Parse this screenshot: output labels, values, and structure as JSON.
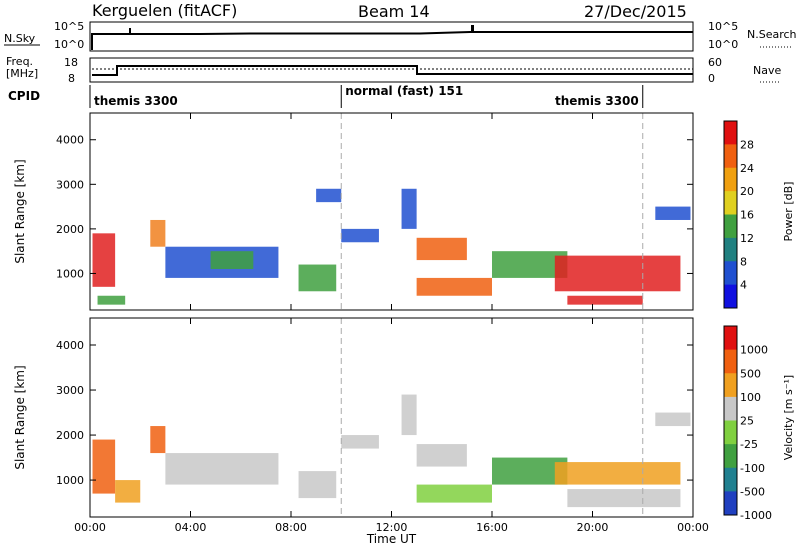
{
  "header": {
    "title": "Kerguelen (fitACF)",
    "beam": "Beam 14",
    "date": "27/Dec/2015"
  },
  "top_panels": {
    "nsky_label": "N.Sky",
    "nsky_ticks": [
      "10^5",
      "10^0"
    ],
    "nsearch_label": "N.Search",
    "nsearch_ticks": [
      "10^5",
      "10^0"
    ],
    "freq_label_1": "Freq.",
    "freq_label_2": "[MHz]",
    "freq_ticks": [
      "18",
      "8"
    ],
    "nave_label": "Nave",
    "nave_ticks": [
      "60",
      "0"
    ],
    "cpid_label": "CPID",
    "cpid_segments": [
      {
        "name": "themis 3300",
        "start_h": 0,
        "end_h": 10
      },
      {
        "name": "normal (fast) 151",
        "start_h": 10,
        "end_h": 22
      },
      {
        "name": "themis 3300",
        "start_h": 22,
        "end_h": 24
      }
    ]
  },
  "chart_data": [
    {
      "type": "heatmap",
      "name": "power-panel",
      "xlabel": "",
      "ylabel": "Slant Range [km]",
      "xlim": [
        0,
        24
      ],
      "ylim": [
        180,
        4600
      ],
      "yticks": [
        1000,
        2000,
        3000,
        4000
      ],
      "colorbar_label": "Power [dB]",
      "colorbar_ticks": [
        "4",
        "8",
        "12",
        "16",
        "20",
        "24",
        "28"
      ],
      "colorbar_colors": [
        "#1010e0",
        "#2050d0",
        "#208080",
        "#40a040",
        "#e0d020",
        "#f0a010",
        "#f06010",
        "#e01010"
      ],
      "markers_h": [
        10,
        22
      ],
      "regions": [
        {
          "t0": 0.1,
          "t1": 1.0,
          "r0": 700,
          "r1": 1900,
          "color": "#e02020"
        },
        {
          "t0": 0.3,
          "t1": 1.4,
          "r0": 300,
          "r1": 500,
          "color": "#40a040"
        },
        {
          "t0": 2.4,
          "t1": 3.0,
          "r0": 1600,
          "r1": 2200,
          "color": "#f08020"
        },
        {
          "t0": 3.0,
          "t1": 7.5,
          "r0": 900,
          "r1": 1600,
          "color": "#2050d0"
        },
        {
          "t0": 4.8,
          "t1": 6.5,
          "r0": 1100,
          "r1": 1500,
          "color": "#40a040"
        },
        {
          "t0": 8.3,
          "t1": 9.8,
          "r0": 600,
          "r1": 1200,
          "color": "#40a040"
        },
        {
          "t0": 9.0,
          "t1": 10.0,
          "r0": 2600,
          "r1": 2900,
          "color": "#2050d0"
        },
        {
          "t0": 10.0,
          "t1": 11.5,
          "r0": 1700,
          "r1": 2000,
          "color": "#2050d0"
        },
        {
          "t0": 12.4,
          "t1": 13.0,
          "r0": 2000,
          "r1": 2900,
          "color": "#2050d0"
        },
        {
          "t0": 13.0,
          "t1": 15.0,
          "r0": 1300,
          "r1": 1800,
          "color": "#f06010"
        },
        {
          "t0": 13.0,
          "t1": 16.0,
          "r0": 500,
          "r1": 900,
          "color": "#f06010"
        },
        {
          "t0": 16.0,
          "t1": 19.0,
          "r0": 900,
          "r1": 1500,
          "color": "#40a040"
        },
        {
          "t0": 18.5,
          "t1": 23.5,
          "r0": 600,
          "r1": 1400,
          "color": "#e02020"
        },
        {
          "t0": 19.0,
          "t1": 22.0,
          "r0": 300,
          "r1": 500,
          "color": "#e02020"
        },
        {
          "t0": 22.5,
          "t1": 23.9,
          "r0": 2200,
          "r1": 2500,
          "color": "#2050d0"
        }
      ]
    },
    {
      "type": "heatmap",
      "name": "velocity-panel",
      "xlabel": "Time UT",
      "ylabel": "Slant Range [km]",
      "xlim": [
        0,
        24
      ],
      "ylim": [
        180,
        4600
      ],
      "yticks": [
        1000,
        2000,
        3000,
        4000
      ],
      "xticks": [
        "00:00",
        "04:00",
        "08:00",
        "12:00",
        "16:00",
        "20:00",
        "00:00"
      ],
      "colorbar_label": "Velocity [m s⁻¹]",
      "colorbar_ticks": [
        "1000",
        "500",
        "100",
        "25",
        "-25",
        "-100",
        "-500",
        "-1000"
      ],
      "colorbar_colors": [
        "#2040c0",
        "#208090",
        "#40a040",
        "#80d040",
        "#c8c8c8",
        "#f0a020",
        "#f06010",
        "#e01010"
      ],
      "markers_h": [
        10,
        22
      ],
      "regions": [
        {
          "t0": 0.1,
          "t1": 1.0,
          "r0": 700,
          "r1": 1900,
          "color": "#f06010"
        },
        {
          "t0": 1.0,
          "t1": 2.0,
          "r0": 500,
          "r1": 1000,
          "color": "#f0a020"
        },
        {
          "t0": 2.4,
          "t1": 3.0,
          "r0": 1600,
          "r1": 2200,
          "color": "#f06010"
        },
        {
          "t0": 3.0,
          "t1": 7.5,
          "r0": 900,
          "r1": 1600,
          "color": "#c8c8c8"
        },
        {
          "t0": 8.3,
          "t1": 9.8,
          "r0": 600,
          "r1": 1200,
          "color": "#c8c8c8"
        },
        {
          "t0": 10.0,
          "t1": 11.5,
          "r0": 1700,
          "r1": 2000,
          "color": "#c8c8c8"
        },
        {
          "t0": 12.4,
          "t1": 13.0,
          "r0": 2000,
          "r1": 2900,
          "color": "#c8c8c8"
        },
        {
          "t0": 13.0,
          "t1": 15.0,
          "r0": 1300,
          "r1": 1800,
          "color": "#c8c8c8"
        },
        {
          "t0": 13.0,
          "t1": 16.0,
          "r0": 500,
          "r1": 900,
          "color": "#80d040"
        },
        {
          "t0": 16.0,
          "t1": 19.0,
          "r0": 900,
          "r1": 1500,
          "color": "#40a040"
        },
        {
          "t0": 18.5,
          "t1": 23.5,
          "r0": 900,
          "r1": 1400,
          "color": "#f0a020"
        },
        {
          "t0": 19.0,
          "t1": 23.5,
          "r0": 400,
          "r1": 800,
          "color": "#c8c8c8"
        },
        {
          "t0": 22.5,
          "t1": 23.9,
          "r0": 2200,
          "r1": 2500,
          "color": "#c8c8c8"
        }
      ]
    }
  ]
}
